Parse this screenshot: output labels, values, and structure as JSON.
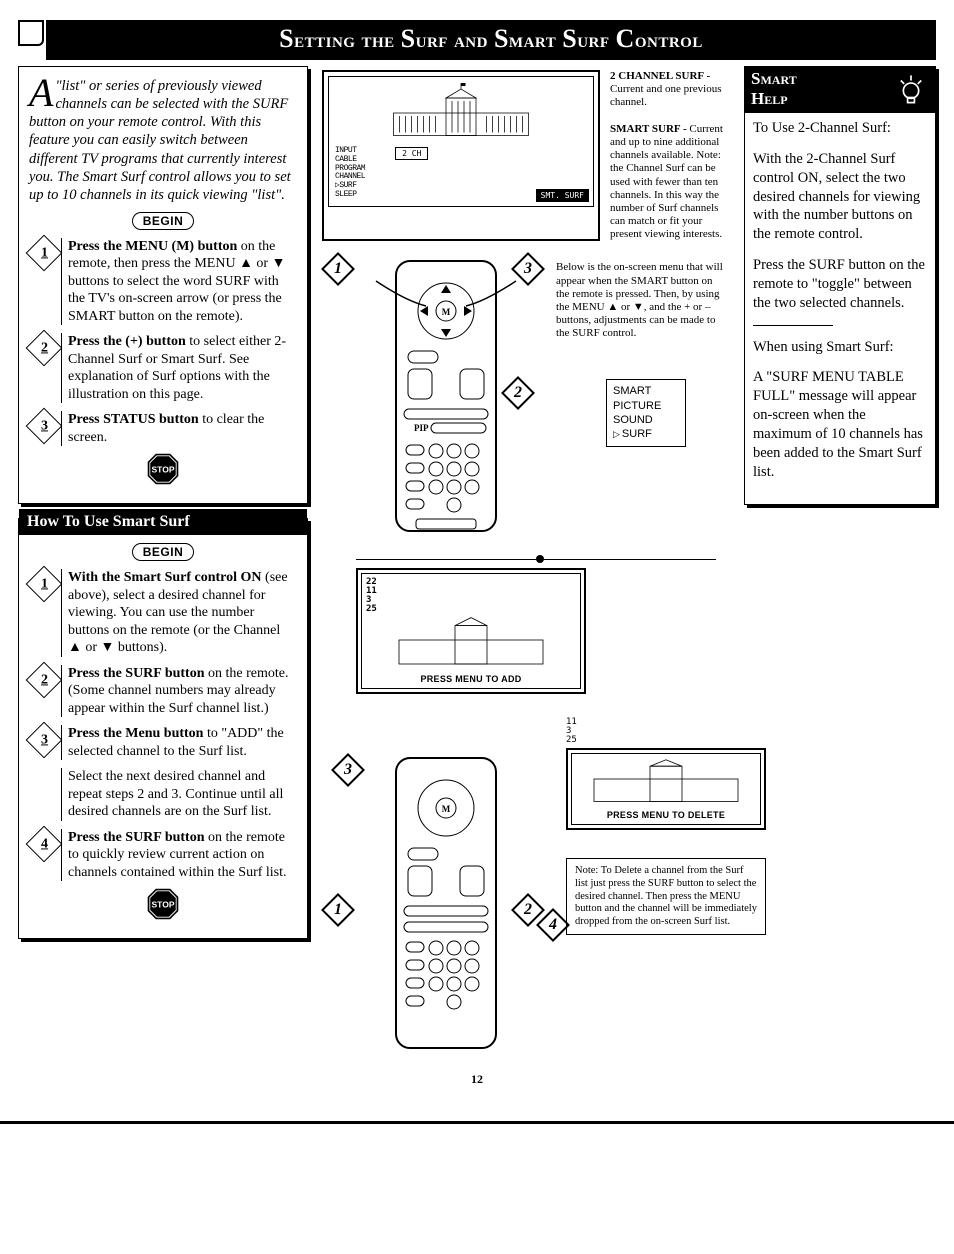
{
  "title_html": "Setting the Surf and Smart Surf Control",
  "page_number": "12",
  "colors": {
    "bg": "#ffffff",
    "ink": "#000000"
  },
  "intro": {
    "dropcap": "A",
    "text": "\"list\" or series of previously viewed channels can be selected with the SURF button on your remote control. With this feature you can easily switch between different TV programs that currently interest you. The Smart Surf control allows you to set up to 10 channels in its quick viewing \"list\"."
  },
  "begin_label": "BEGIN",
  "stop_label": "STOP",
  "main_steps": [
    {
      "n": "1",
      "bold": "Press the MENU (M) button",
      "rest": " on the remote, then press the MENU ▲ or ▼ buttons to select the word SURF with the TV's on-screen arrow (or press the SMART button on the remote)."
    },
    {
      "n": "2",
      "bold": "Press the (+) button",
      "rest": " to select either 2-Channel Surf or Smart Surf. See explanation of Surf options with the illustration on this page."
    },
    {
      "n": "3",
      "bold": "Press STATUS button",
      "rest": " to clear the screen."
    }
  ],
  "howto_title": "How To Use Smart Surf",
  "howto_steps": [
    {
      "n": "1",
      "bold": "With the Smart Surf control ON",
      "rest": " (see above), select a desired channel for viewing. You can use the number buttons on the remote (or the Channel ▲ or ▼ buttons)."
    },
    {
      "n": "2",
      "bold": "Press the SURF button",
      "rest": " on the remote. (Some channel numbers may already appear within the Surf channel list.)"
    },
    {
      "n": "3",
      "bold": "Press the Menu button",
      "rest": " to \"ADD\" the selected channel to the Surf list."
    },
    {
      "n": "",
      "bold": "",
      "rest": "Select the next desired channel and repeat steps 2 and 3. Continue until all desired channels are on the Surf list."
    },
    {
      "n": "4",
      "bold": "Press the SURF button",
      "rest": " on the remote to quickly review current action on channels contained within the Surf list."
    }
  ],
  "tv_osd": {
    "lines": [
      "INPUT",
      "CABLE",
      "PROGRAM",
      "CHANNEL",
      "▷SURF",
      "SLEEP"
    ],
    "surf_mode": "2 CH",
    "badge": "SMT. SURF"
  },
  "surf_expl": {
    "two_ch_title": "2 CHANNEL SURF -",
    "two_ch_body": "Current and one previous channel.",
    "smart_title": "SMART SURF -",
    "smart_body": "Current and up to nine additional channels available. Note: the Channel Surf can be used with fewer than ten channels. In this way the number of Surf channels can match or fit your present viewing interests."
  },
  "mid_caption": "Below is the on-screen menu that will appear when the SMART button on the remote is pressed. Then, by using the MENU ▲ or ▼, and the + or – buttons, adjustments can be made to the SURF control.",
  "smart_menu": {
    "items": [
      "SMART",
      "PICTURE",
      "SOUND",
      "SURF"
    ],
    "selected_index": 3
  },
  "add_tv": {
    "channels": [
      "22",
      "11",
      "3",
      "25"
    ],
    "label": "PRESS MENU TO ADD"
  },
  "del_tv": {
    "channels": [
      "11",
      "3",
      "25"
    ],
    "label": "PRESS MENU TO DELETE"
  },
  "delete_note": "Note: To Delete a channel from the Surf list just press the SURF button to select the desired channel. Then press the MENU button and the channel will be immediately dropped from the on-screen Surf list.",
  "smart_help": {
    "title1": "Smart",
    "title2": "Help",
    "p1_lead": "To Use 2-Channel Surf:",
    "p2": "With the 2-Channel Surf control ON, select the two desired channels for viewing with the number buttons on the remote control.",
    "p3": "Press the SURF button on the remote to \"toggle\" between the two selected channels.",
    "p4_lead": "When using Smart Surf:",
    "p5": "A \"SURF MENU TABLE FULL\" message will appear on-screen when the maximum of 10 channels has been added to the Smart Surf list."
  }
}
